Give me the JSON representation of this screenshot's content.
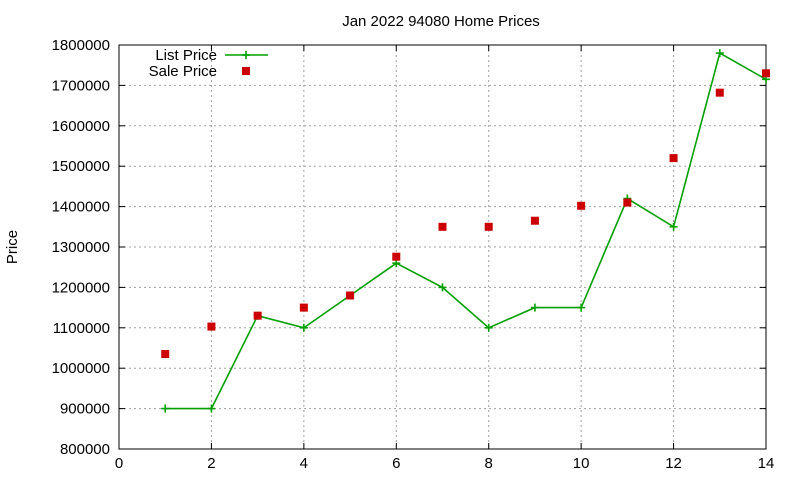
{
  "chart_data": {
    "type": "line",
    "title": "Jan 2022 94080 Home Prices",
    "xlabel": "",
    "ylabel": "Price",
    "xlim": [
      0,
      14
    ],
    "ylim": [
      800000,
      1800000
    ],
    "x_ticks": [
      0,
      2,
      4,
      6,
      8,
      10,
      12,
      14
    ],
    "y_ticks": [
      800000,
      900000,
      1000000,
      1100000,
      1200000,
      1300000,
      1400000,
      1500000,
      1600000,
      1700000,
      1800000
    ],
    "grid": true,
    "legend_position": "top-left",
    "series": [
      {
        "name": "List Price",
        "style": "line+cross",
        "color": "#00a000",
        "x": [
          1,
          2,
          3,
          4,
          5,
          6,
          7,
          8,
          9,
          10,
          11,
          12,
          13,
          14
        ],
        "y": [
          900000,
          900000,
          1130000,
          1100000,
          1180000,
          1260000,
          1200000,
          1100000,
          1150000,
          1150000,
          1420000,
          1350000,
          1780000,
          1715000
        ]
      },
      {
        "name": "Sale Price",
        "style": "square",
        "color": "#cc0000",
        "x": [
          1,
          2,
          3,
          4,
          5,
          6,
          7,
          8,
          9,
          10,
          11,
          12,
          13,
          14
        ],
        "y": [
          1035000,
          1103000,
          1130000,
          1150000,
          1180000,
          1276000,
          1350000,
          1350000,
          1365000,
          1402000,
          1410000,
          1520000,
          1682000,
          1730000
        ]
      }
    ]
  }
}
